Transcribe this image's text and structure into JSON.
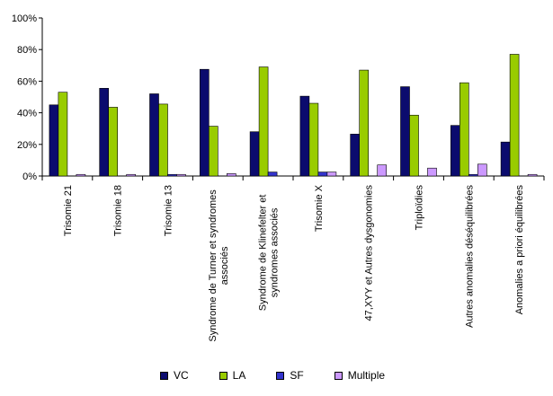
{
  "chart_data": {
    "type": "bar",
    "categories": [
      [
        "Trisomie 21"
      ],
      [
        "Trisomie 18"
      ],
      [
        "Trisomie 13"
      ],
      [
        "Syndrome de Turner et syndromes",
        "associés"
      ],
      [
        "Syndrome de Klinefelter et",
        "syndromes associés"
      ],
      [
        "Trisomie X"
      ],
      [
        "47,XYY et Autres dysgonomies"
      ],
      [
        "Triploïdies"
      ],
      [
        "Autres anomalies déséquilibrées"
      ],
      [
        "Anomalies a priori équilibrées"
      ]
    ],
    "series": [
      {
        "name": "VC",
        "color": "#0b0b6e",
        "values": [
          45,
          55.5,
          52,
          67.5,
          28,
          50.5,
          26.5,
          56.5,
          32,
          21.5
        ]
      },
      {
        "name": "LA",
        "color": "#99cc00",
        "values": [
          53,
          43.5,
          45.5,
          31.5,
          69,
          46,
          67,
          38.5,
          59,
          77
        ]
      },
      {
        "name": "SF",
        "color": "#3333cc",
        "values": [
          0,
          0,
          1,
          0,
          2.5,
          2.5,
          0,
          0,
          1,
          0
        ]
      },
      {
        "name": "Multiple",
        "color": "#cc99ff",
        "values": [
          1,
          1,
          1,
          1.5,
          0,
          2.5,
          7,
          5,
          7.5,
          1
        ]
      }
    ],
    "y_ticks": [
      "0%",
      "20%",
      "40%",
      "60%",
      "80%",
      "100%"
    ],
    "ylim": [
      0,
      100
    ],
    "grid": false,
    "legend_position": "bottom"
  }
}
